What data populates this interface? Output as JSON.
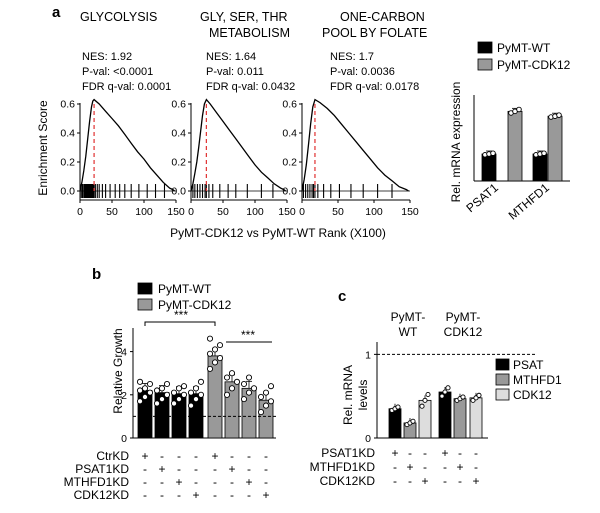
{
  "panels": {
    "a": "a",
    "b": "b",
    "c": "c"
  },
  "colors": {
    "black": "#000000",
    "gray": "#999999",
    "lightgray": "#dddddd",
    "dashed_red": "#e03030"
  },
  "chart_data": [
    {
      "id": "gsea-glycolysis",
      "type": "line",
      "title": "GLYCOLYSIS",
      "stats": {
        "nes": "NES: 1.92",
        "pval": "P-val: <0.0001",
        "fdr": "FDR q-val: 0.0001"
      },
      "xlim": [
        0,
        150
      ],
      "ylim": [
        0,
        0.65
      ],
      "ylabel": "Enrichment Score",
      "x_ticks": [
        "0",
        "50",
        "100",
        "150"
      ],
      "y_ticks": [
        "0.0",
        "0.2",
        "0.4",
        "0.6"
      ],
      "peak_x": 22,
      "x": [
        0,
        3,
        6,
        9,
        12,
        15,
        18,
        20,
        22,
        30,
        40,
        50,
        60,
        70,
        80,
        90,
        100,
        110,
        120,
        130,
        140,
        145,
        148
      ],
      "y": [
        0,
        0.06,
        0.14,
        0.24,
        0.36,
        0.48,
        0.58,
        0.62,
        0.63,
        0.6,
        0.55,
        0.5,
        0.45,
        0.39,
        0.33,
        0.27,
        0.22,
        0.16,
        0.11,
        0.06,
        0.02,
        0.01,
        0
      ],
      "hits": [
        2,
        4,
        5,
        7,
        8,
        9,
        10,
        11,
        12,
        13,
        14,
        15,
        16,
        17,
        18,
        19,
        20,
        21,
        22,
        24,
        27,
        30,
        35,
        40,
        47,
        55,
        62,
        70,
        80,
        92,
        105,
        118,
        132
      ]
    },
    {
      "id": "gsea-gly-ser-thr",
      "type": "line",
      "title": "GLY, SER, THR METABOLISM",
      "title_lines": [
        "GLY, SER, THR",
        "METABOLISM"
      ],
      "stats": {
        "nes": "NES: 1.64",
        "pval": "P-val: 0.011",
        "fdr": "FDR q-val: 0.0432"
      },
      "xlim": [
        0,
        150
      ],
      "ylim": [
        0,
        0.65
      ],
      "x_ticks": [
        "0",
        "50",
        "100",
        "150"
      ],
      "y_ticks": [
        "0.0",
        "0.2",
        "0.4",
        "0.6"
      ],
      "peak_x": 24,
      "x": [
        0,
        3,
        6,
        9,
        12,
        15,
        18,
        21,
        24,
        30,
        40,
        50,
        60,
        70,
        80,
        90,
        100,
        110,
        120,
        130,
        140,
        145,
        148
      ],
      "y": [
        0,
        0.05,
        0.12,
        0.2,
        0.3,
        0.41,
        0.52,
        0.6,
        0.63,
        0.6,
        0.54,
        0.48,
        0.42,
        0.36,
        0.3,
        0.24,
        0.18,
        0.13,
        0.09,
        0.05,
        0.02,
        0.01,
        0
      ],
      "hits": [
        3,
        6,
        10,
        14,
        18,
        22,
        24,
        28,
        34,
        45,
        58,
        70,
        88,
        110,
        128
      ]
    },
    {
      "id": "gsea-one-carbon",
      "type": "line",
      "title": "ONE-CARBON POOL BY FOLATE",
      "title_lines": [
        "ONE-CARBON",
        "POOL BY FOLATE"
      ],
      "stats": {
        "nes": "NES: 1.7",
        "pval": "P-val: 0.0036",
        "fdr": "FDR q-val: 0.0178"
      },
      "xlim": [
        0,
        150
      ],
      "ylim": [
        0,
        0.65
      ],
      "x_ticks": [
        "0",
        "50",
        "100",
        "150"
      ],
      "y_ticks": [
        "0.0",
        "0.2",
        "0.4",
        "0.6"
      ],
      "peak_x": 18,
      "x": [
        0,
        3,
        6,
        9,
        12,
        15,
        18,
        25,
        35,
        45,
        55,
        65,
        75,
        85,
        95,
        105,
        115,
        125,
        135,
        145,
        148
      ],
      "y": [
        0,
        0.08,
        0.18,
        0.32,
        0.46,
        0.58,
        0.63,
        0.61,
        0.57,
        0.52,
        0.46,
        0.4,
        0.34,
        0.28,
        0.22,
        0.16,
        0.11,
        0.07,
        0.03,
        0.01,
        0
      ],
      "hits": [
        2,
        5,
        8,
        11,
        14,
        16,
        18,
        22,
        30,
        40,
        52,
        68,
        85,
        105,
        125
      ]
    },
    {
      "id": "gsea-shared-axis",
      "type": "label",
      "xlabel": "PyMT-CDK12 vs PyMT-WT Rank (X100)"
    },
    {
      "id": "rel-mrna-expression",
      "type": "bar",
      "ylabel": "Rel. mRNA expression",
      "ylim": [
        0,
        3
      ],
      "categories": [
        "PSAT1",
        "MTHFD1"
      ],
      "series": [
        {
          "name": "PyMT-WT",
          "color": "#000000",
          "values": [
            1.0,
            1.0
          ],
          "points": [
            [
              0.97,
              1.0,
              1.03
            ],
            [
              0.97,
              1.0,
              1.03
            ]
          ]
        },
        {
          "name": "PyMT-CDK12",
          "color": "#999999",
          "values": [
            2.58,
            2.4
          ],
          "points": [
            [
              2.52,
              2.58,
              2.65
            ],
            [
              2.37,
              2.4,
              2.44
            ]
          ]
        }
      ],
      "legend_position": "top"
    },
    {
      "id": "relative-growth",
      "type": "bar",
      "ylabel": "Relative Growth",
      "ylim": [
        0,
        5
      ],
      "y_ticks": [
        "0",
        "2",
        "4"
      ],
      "reference_line": 1,
      "legend": [
        {
          "name": "PyMT-WT",
          "color": "#000000"
        },
        {
          "name": "PyMT-CDK12",
          "color": "#999999"
        }
      ],
      "groups": [
        "PyMT-WT",
        "PyMT-WT",
        "PyMT-WT",
        "PyMT-WT",
        "PyMT-CDK12",
        "PyMT-CDK12",
        "PyMT-CDK12",
        "PyMT-CDK12"
      ],
      "values": [
        2.2,
        2.1,
        2.05,
        2.05,
        3.8,
        2.6,
        2.3,
        1.75
      ],
      "points": [
        [
          1.7,
          1.9,
          2.1,
          2.2,
          2.3,
          2.5,
          2.6
        ],
        [
          1.6,
          1.8,
          2.0,
          2.2,
          2.3,
          2.5
        ],
        [
          1.6,
          1.8,
          2.0,
          2.1,
          2.3,
          2.4
        ],
        [
          1.5,
          1.8,
          2.0,
          2.1,
          2.3,
          2.6
        ],
        [
          3.2,
          3.5,
          3.7,
          3.9,
          4.1,
          4.3,
          4.6
        ],
        [
          2.0,
          2.3,
          2.6,
          2.8,
          3.0
        ],
        [
          1.8,
          2.1,
          2.3,
          2.5,
          2.8
        ],
        [
          1.2,
          1.5,
          1.7,
          1.9,
          2.1,
          2.4
        ]
      ],
      "row_labels": [
        "CtrKD",
        "PSAT1KD",
        "MTHFD1KD",
        "CDK12KD"
      ],
      "design": [
        [
          "+",
          "-",
          "-",
          "-",
          "+",
          "-",
          "-",
          "-"
        ],
        [
          "-",
          "+",
          "-",
          "-",
          "-",
          "+",
          "-",
          "-"
        ],
        [
          "-",
          "-",
          "+",
          "-",
          "-",
          "-",
          "+",
          "-"
        ],
        [
          "-",
          "-",
          "-",
          "+",
          "-",
          "-",
          "-",
          "+"
        ]
      ],
      "significance": [
        {
          "from": 0,
          "to": 4,
          "label": "***"
        },
        {
          "from": 5,
          "to": 7,
          "label": "***"
        }
      ]
    },
    {
      "id": "rel-mrna-levels",
      "type": "bar",
      "ylabel": "Rel. mRNA levels",
      "ylabel_lines": [
        "Rel. mRNA",
        "levels"
      ],
      "ylim": [
        0,
        1.1
      ],
      "y_ticks": [
        "0",
        "1"
      ],
      "reference_line": 1,
      "group_labels": [
        [
          "PyMT-",
          "WT"
        ],
        [
          "PyMT-",
          "CDK12"
        ]
      ],
      "legend": [
        {
          "name": "PSAT",
          "color": "#000000"
        },
        {
          "name": "MTHFD1",
          "color": "#999999"
        },
        {
          "name": "CDK12",
          "color": "#dddddd"
        }
      ],
      "series_order": [
        "PSAT",
        "MTHFD1",
        "CDK12",
        "PSAT",
        "MTHFD1",
        "CDK12"
      ],
      "values": [
        0.35,
        0.18,
        0.45,
        0.55,
        0.47,
        0.48
      ],
      "points": [
        [
          0.33,
          0.35,
          0.37
        ],
        [
          0.16,
          0.18,
          0.2
        ],
        [
          0.38,
          0.45,
          0.52
        ],
        [
          0.5,
          0.55,
          0.6
        ],
        [
          0.45,
          0.47,
          0.49
        ],
        [
          0.45,
          0.48,
          0.51
        ]
      ],
      "row_labels": [
        "PSAT1KD",
        "MTHFD1KD",
        "CDK12KD"
      ],
      "design": [
        [
          "+",
          "-",
          "-",
          "+",
          "-",
          "-"
        ],
        [
          "-",
          "+",
          "-",
          "-",
          "+",
          "-"
        ],
        [
          "-",
          "-",
          "+",
          "-",
          "-",
          "+"
        ]
      ]
    }
  ]
}
